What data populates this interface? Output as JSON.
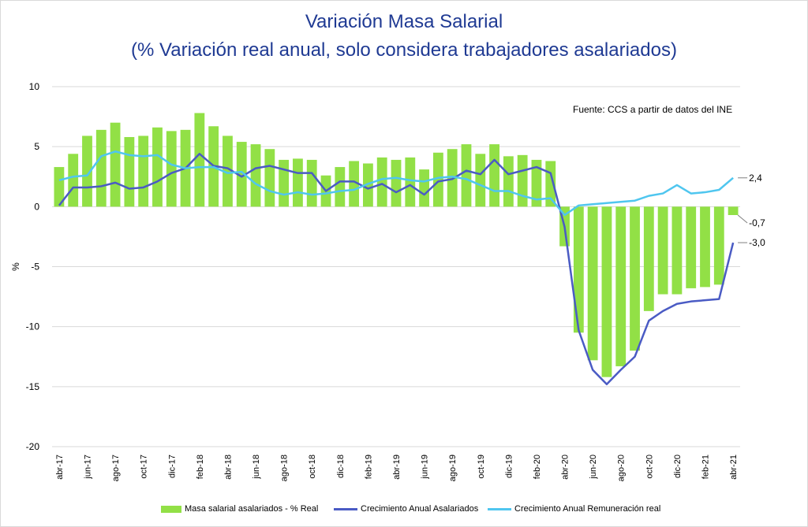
{
  "title_line1": "Variación Masa Salarial",
  "title_line2": "(% Variación real anual, solo considera trabajadores asalariados)",
  "source_note": "Fuente: CCS a partir de datos del INE",
  "colors": {
    "bars": "#92e046",
    "line_asalariados": "#4a5bc4",
    "line_remuneracion": "#4fc6ef",
    "title": "#1f3a93"
  },
  "legend": {
    "bars": "Masa salarial asalariados - % Real",
    "asalariados": "Crecimiento Anual Asalariados",
    "remuneracion": "Crecimiento Anual Remuneración real"
  },
  "end_labels": [
    "2,4",
    "-0,7",
    "-3,0"
  ],
  "chart_data": {
    "type": "bar",
    "title": "Variación Masa Salarial",
    "subtitle": "(% Variación real anual, solo considera trabajadores asalariados)",
    "xlabel": "",
    "ylabel": "%",
    "ylim": [
      -20,
      10
    ],
    "y_ticks": [
      10,
      5,
      0,
      -5,
      -10,
      -15,
      -20
    ],
    "grid": true,
    "legend_position": "bottom",
    "x": [
      "abr-17",
      "may-17",
      "jun-17",
      "jul-17",
      "ago-17",
      "sep-17",
      "oct-17",
      "nov-17",
      "dic-17",
      "ene-18",
      "feb-18",
      "mar-18",
      "abr-18",
      "may-18",
      "jun-18",
      "jul-18",
      "ago-18",
      "sep-18",
      "oct-18",
      "nov-18",
      "dic-18",
      "ene-19",
      "feb-19",
      "mar-19",
      "abr-19",
      "may-19",
      "jun-19",
      "jul-19",
      "ago-19",
      "sep-19",
      "oct-19",
      "nov-19",
      "dic-19",
      "ene-20",
      "feb-20",
      "mar-20",
      "abr-20",
      "may-20",
      "jun-20",
      "jul-20",
      "ago-20",
      "sep-20",
      "oct-20",
      "nov-20",
      "dic-20",
      "ene-21",
      "feb-21",
      "mar-21",
      "abr-21"
    ],
    "x_tick_labels": [
      "abr-17",
      "jun-17",
      "ago-17",
      "oct-17",
      "dic-17",
      "feb-18",
      "abr-18",
      "jun-18",
      "ago-18",
      "oct-18",
      "dic-18",
      "feb-19",
      "abr-19",
      "jun-19",
      "ago-19",
      "oct-19",
      "dic-19",
      "feb-20",
      "abr-20",
      "jun-20",
      "ago-20",
      "oct-20",
      "dic-20",
      "feb-21",
      "abr-21"
    ],
    "series": [
      {
        "name": "Masa salarial asalariados - % Real",
        "type": "bar",
        "values": [
          3.3,
          4.4,
          5.9,
          6.4,
          7.0,
          5.8,
          5.9,
          6.6,
          6.3,
          6.4,
          7.8,
          6.7,
          5.9,
          5.4,
          5.2,
          4.8,
          3.9,
          4.0,
          3.9,
          2.6,
          3.3,
          3.8,
          3.6,
          4.1,
          3.9,
          4.1,
          3.1,
          4.5,
          4.8,
          5.2,
          4.4,
          5.2,
          4.2,
          4.3,
          3.9,
          3.8,
          -3.3,
          -10.5,
          -12.8,
          -14.2,
          -13.3,
          -12.0,
          -8.7,
          -7.3,
          -7.3,
          -6.8,
          -6.7,
          -6.5,
          -0.7
        ]
      },
      {
        "name": "Crecimiento Anual Asalariados",
        "type": "line",
        "values": [
          0.1,
          1.6,
          1.6,
          1.7,
          2.0,
          1.5,
          1.6,
          2.1,
          2.8,
          3.2,
          4.4,
          3.4,
          3.2,
          2.5,
          3.2,
          3.4,
          3.1,
          2.8,
          2.8,
          1.3,
          2.1,
          2.1,
          1.5,
          1.9,
          1.2,
          1.8,
          1.0,
          2.1,
          2.3,
          3.0,
          2.7,
          3.9,
          2.7,
          3.0,
          3.3,
          2.8,
          -1.7,
          -10.3,
          -13.6,
          -14.8,
          -13.6,
          -12.5,
          -9.5,
          -8.7,
          -8.1,
          -7.9,
          -7.8,
          -7.7,
          -3.0
        ]
      },
      {
        "name": "Crecimiento Anual Remuneración real",
        "type": "line",
        "values": [
          2.2,
          2.5,
          2.6,
          4.2,
          4.6,
          4.3,
          4.2,
          4.3,
          3.5,
          3.2,
          3.3,
          3.3,
          2.8,
          2.9,
          1.9,
          1.3,
          1.0,
          1.2,
          1.0,
          1.1,
          1.3,
          1.4,
          1.9,
          2.3,
          2.4,
          2.2,
          2.1,
          2.4,
          2.5,
          2.3,
          1.8,
          1.3,
          1.3,
          0.9,
          0.6,
          0.7,
          -0.7,
          0.1,
          0.2,
          0.3,
          0.4,
          0.5,
          0.9,
          1.1,
          1.8,
          1.1,
          1.2,
          1.4,
          2.4
        ]
      }
    ]
  }
}
